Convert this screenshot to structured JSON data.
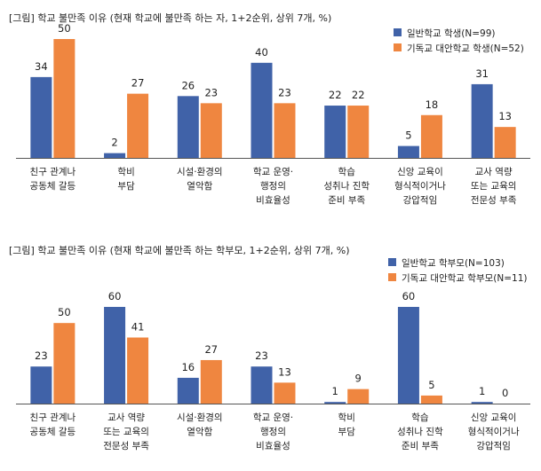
{
  "colors": {
    "series1": "#4062a8",
    "series2": "#ef8640",
    "axis": "#555555",
    "text": "#222222"
  },
  "chart_data": [
    {
      "type": "bar",
      "title": "[그림] 학교 불만족 이유 (현재 학교에 불만족 하는 자, 1+2순위, 상위 7개, %)",
      "categories": [
        [
          "친구 관계나",
          "공동체 갈등"
        ],
        [
          "학비",
          "부담"
        ],
        [
          "시설·환경의",
          "열악함"
        ],
        [
          "학교 운영·",
          "행정의",
          "비효율성"
        ],
        [
          "학습",
          "성취나 진학",
          "준비 부족"
        ],
        [
          "신앙 교육이",
          "형식적이거나",
          "강압적임"
        ],
        [
          "교사 역량",
          "또는 교육의",
          "전문성 부족"
        ]
      ],
      "series": [
        {
          "name": "일반학교 학생(N=99)",
          "values": [
            34,
            2,
            26,
            40,
            22,
            5,
            31
          ]
        },
        {
          "name": "기독교 대안학교 학생(N=52)",
          "values": [
            50,
            27,
            23,
            23,
            22,
            18,
            13
          ]
        }
      ],
      "legend": "top-right",
      "ylim": [
        0,
        50
      ]
    },
    {
      "type": "bar",
      "title": "[그림] 학교 불만족 이유 (현재 학교에 불만족 하는 학부모, 1+2순위, 상위 7개, %)",
      "categories": [
        [
          "친구 관계나",
          "공동체 갈등"
        ],
        [
          "교사 역량",
          "또는 교육의",
          "전문성 부족"
        ],
        [
          "시설·환경의",
          "열악함"
        ],
        [
          "학교 운영·",
          "행정의",
          "비효율성"
        ],
        [
          "학비",
          "부담"
        ],
        [
          "학습",
          "성취나 진학",
          "준비 부족"
        ],
        [
          "신앙 교육이",
          "형식적이거나",
          "강압적임"
        ]
      ],
      "series": [
        {
          "name": "일반학교 학부모(N=103)",
          "values": [
            23,
            60,
            16,
            23,
            1,
            60,
            1
          ]
        },
        {
          "name": "기독교 대안학교 학부모(N=11)",
          "values": [
            50,
            41,
            27,
            13,
            9,
            5,
            0
          ]
        }
      ],
      "legend": "top-right",
      "ylim": [
        0,
        60
      ]
    }
  ]
}
